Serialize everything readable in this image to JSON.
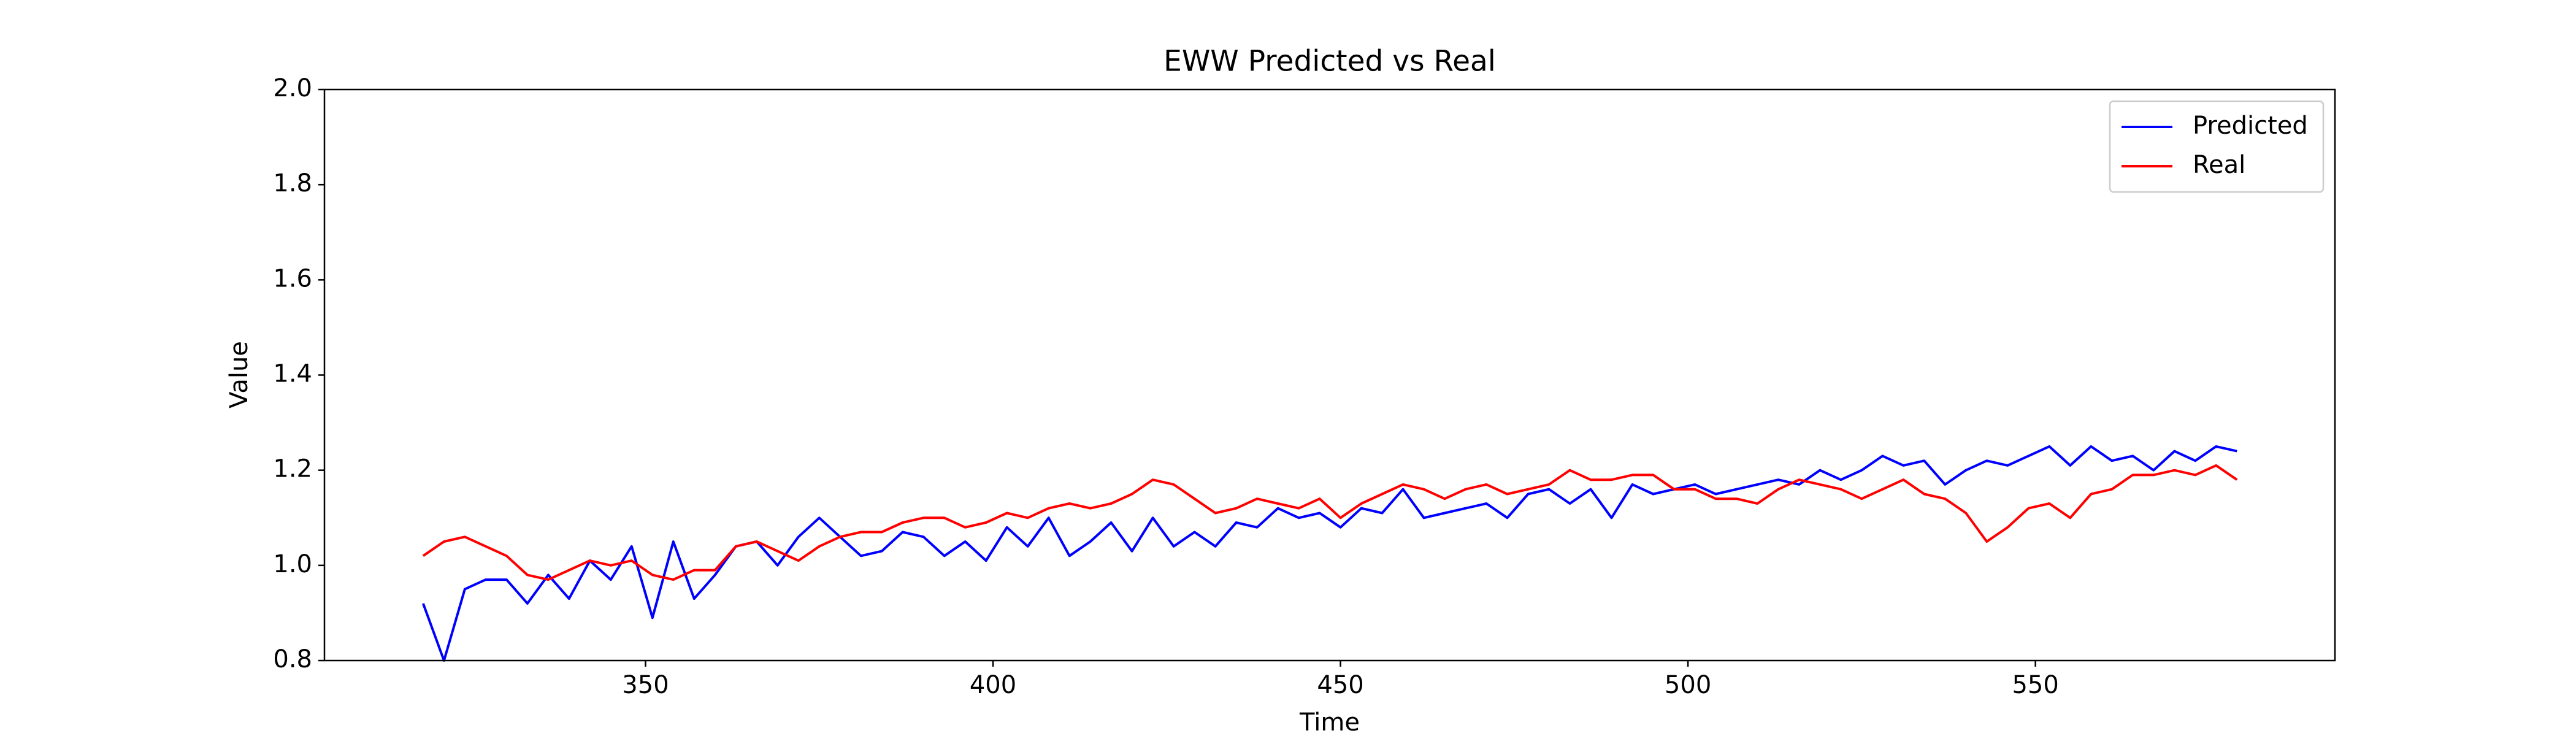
{
  "chart_data": {
    "type": "line",
    "title": "EWW Predicted vs Real",
    "x_label": "Time",
    "y_label": "Value",
    "x": [
      318,
      321,
      324,
      327,
      330,
      333,
      336,
      339,
      342,
      345,
      348,
      351,
      354,
      357,
      360,
      363,
      366,
      369,
      372,
      375,
      378,
      381,
      384,
      387,
      390,
      393,
      396,
      399,
      402,
      405,
      408,
      411,
      414,
      417,
      420,
      423,
      426,
      429,
      432,
      435,
      438,
      441,
      444,
      447,
      450,
      453,
      456,
      459,
      462,
      465,
      468,
      471,
      474,
      477,
      480,
      483,
      486,
      489,
      492,
      495,
      498,
      501,
      504,
      507,
      510,
      513,
      516,
      519,
      522,
      525,
      528,
      531,
      534,
      537,
      540,
      543,
      546,
      549,
      552,
      555,
      558,
      561,
      564,
      567,
      570,
      573,
      576,
      579
    ],
    "series": [
      {
        "name": "Predicted",
        "color": "#0000ff",
        "values": [
          0.92,
          0.8,
          0.95,
          0.97,
          0.97,
          0.92,
          0.98,
          0.93,
          1.01,
          0.97,
          1.04,
          0.89,
          1.05,
          0.93,
          0.98,
          1.04,
          1.05,
          1.0,
          1.06,
          1.1,
          1.06,
          1.02,
          1.03,
          1.07,
          1.06,
          1.02,
          1.05,
          1.01,
          1.08,
          1.04,
          1.1,
          1.02,
          1.05,
          1.09,
          1.03,
          1.1,
          1.04,
          1.07,
          1.04,
          1.09,
          1.08,
          1.12,
          1.1,
          1.11,
          1.08,
          1.12,
          1.11,
          1.16,
          1.1,
          1.11,
          1.12,
          1.13,
          1.1,
          1.15,
          1.16,
          1.13,
          1.16,
          1.1,
          1.17,
          1.15,
          1.16,
          1.17,
          1.15,
          1.16,
          1.17,
          1.18,
          1.17,
          1.2,
          1.18,
          1.2,
          1.23,
          1.21,
          1.22,
          1.17,
          1.2,
          1.22,
          1.21,
          1.23,
          1.25,
          1.21,
          1.25,
          1.22,
          1.23,
          1.2,
          1.24,
          1.22,
          1.25,
          1.24
        ]
      },
      {
        "name": "Real",
        "color": "#ff0000",
        "values": [
          1.02,
          1.05,
          1.06,
          1.04,
          1.02,
          0.98,
          0.97,
          0.99,
          1.01,
          1.0,
          1.01,
          0.98,
          0.97,
          0.99,
          0.99,
          1.04,
          1.05,
          1.03,
          1.01,
          1.04,
          1.06,
          1.07,
          1.07,
          1.09,
          1.1,
          1.1,
          1.08,
          1.09,
          1.11,
          1.1,
          1.12,
          1.13,
          1.12,
          1.13,
          1.15,
          1.18,
          1.17,
          1.14,
          1.11,
          1.12,
          1.14,
          1.13,
          1.12,
          1.14,
          1.1,
          1.13,
          1.15,
          1.17,
          1.16,
          1.14,
          1.16,
          1.17,
          1.15,
          1.16,
          1.17,
          1.2,
          1.18,
          1.18,
          1.19,
          1.19,
          1.16,
          1.16,
          1.14,
          1.14,
          1.13,
          1.16,
          1.18,
          1.17,
          1.16,
          1.14,
          1.16,
          1.18,
          1.15,
          1.14,
          1.11,
          1.05,
          1.08,
          1.12,
          1.13,
          1.1,
          1.15,
          1.16,
          1.19,
          1.19,
          1.2,
          1.19,
          1.21,
          1.18
        ]
      }
    ],
    "xlim": [
      303.8,
      593.1
    ],
    "xticks": [
      350,
      400,
      450,
      500,
      550
    ],
    "ylim": [
      0.8,
      2.0
    ],
    "yticks": [
      0.8,
      {
        "value": 1,
        "label": "1.0"
      },
      1.2,
      1.4,
      1.6,
      1.8,
      {
        "value": 2,
        "label": "2.0"
      }
    ],
    "grid": false,
    "legend": "upper right"
  }
}
